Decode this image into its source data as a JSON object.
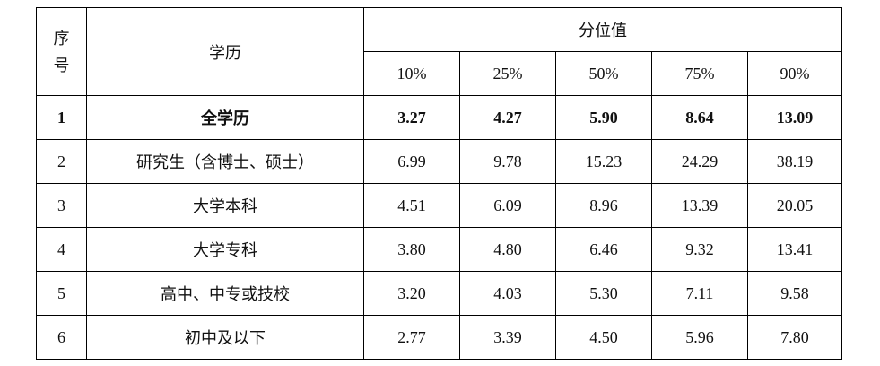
{
  "table": {
    "header": {
      "seq": "序\n号",
      "seq_line1": "序",
      "seq_line2": "号",
      "edu": "学历",
      "percentile_group": "分位值",
      "percentiles": [
        "10%",
        "25%",
        "50%",
        "75%",
        "90%"
      ]
    },
    "rows": [
      {
        "seq": "1",
        "edu": "全学历",
        "values": [
          "3.27",
          "4.27",
          "5.90",
          "8.64",
          "13.09"
        ],
        "bold": true
      },
      {
        "seq": "2",
        "edu": "研究生（含博士、硕士）",
        "values": [
          "6.99",
          "9.78",
          "15.23",
          "24.29",
          "38.19"
        ]
      },
      {
        "seq": "3",
        "edu": "大学本科",
        "values": [
          "4.51",
          "6.09",
          "8.96",
          "13.39",
          "20.05"
        ]
      },
      {
        "seq": "4",
        "edu": "大学专科",
        "values": [
          "3.80",
          "4.80",
          "6.46",
          "9.32",
          "13.41"
        ]
      },
      {
        "seq": "5",
        "edu": "高中、中专或技校",
        "values": [
          "3.20",
          "4.03",
          "5.30",
          "7.11",
          "9.58"
        ]
      },
      {
        "seq": "6",
        "edu": "初中及以下",
        "values": [
          "2.77",
          "3.39",
          "4.50",
          "5.96",
          "7.80"
        ]
      }
    ]
  }
}
